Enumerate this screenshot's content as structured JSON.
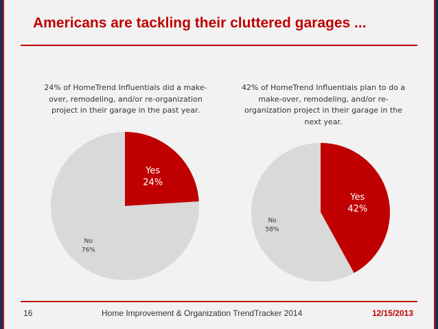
{
  "title": "Americans are tackling their cluttered garages ...",
  "footer": {
    "page_number": "16",
    "report_title": "Home Improvement & Organization TrendTracker 2014",
    "date": "12/15/2013"
  },
  "colors": {
    "accent": "#c00000",
    "yes": "#c00000",
    "no": "#d9d9d9",
    "navy": "#1e2b53"
  },
  "chart_data": [
    {
      "type": "pie",
      "title": "24% of HomeTrend Influentials did a make-over, remodeling, and/or re-organization project in their garage in the past year.",
      "slices": [
        {
          "label": "Yes",
          "value": 24,
          "display": "24%"
        },
        {
          "label": "No",
          "value": 76,
          "display": "76%"
        }
      ]
    },
    {
      "type": "pie",
      "title": "42% of HomeTrend Influentials plan to do a make-over, remodeling, and/or re-organization project in their garage in the next year.",
      "slices": [
        {
          "label": "Yes",
          "value": 42,
          "display": "42%"
        },
        {
          "label": "No",
          "value": 58,
          "display": "58%"
        }
      ]
    }
  ]
}
